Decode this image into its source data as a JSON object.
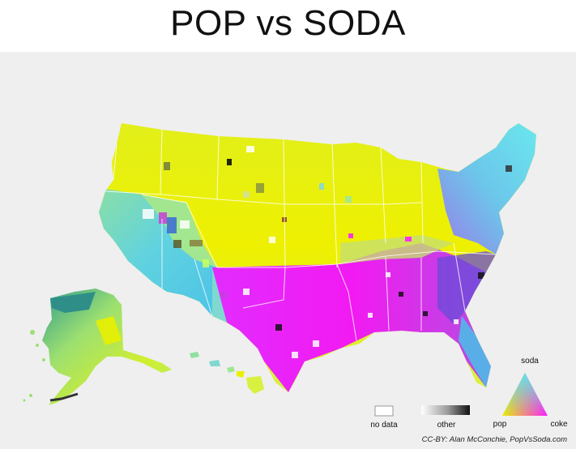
{
  "title": "POP vs SODA",
  "legend": {
    "no_data_label": "no data",
    "other_label": "other",
    "triangle_top_label": "soda",
    "triangle_left_label": "pop",
    "triangle_right_label": "coke"
  },
  "colors": {
    "pop": "#e8f000",
    "soda": "#5fe3ee",
    "coke": "#ff1aff",
    "no_data": "#ffffff",
    "other_dark": "#111111",
    "background": "#efefef"
  },
  "credit": "CC-BY: Alan McConchie, PopVsSoda.com"
}
